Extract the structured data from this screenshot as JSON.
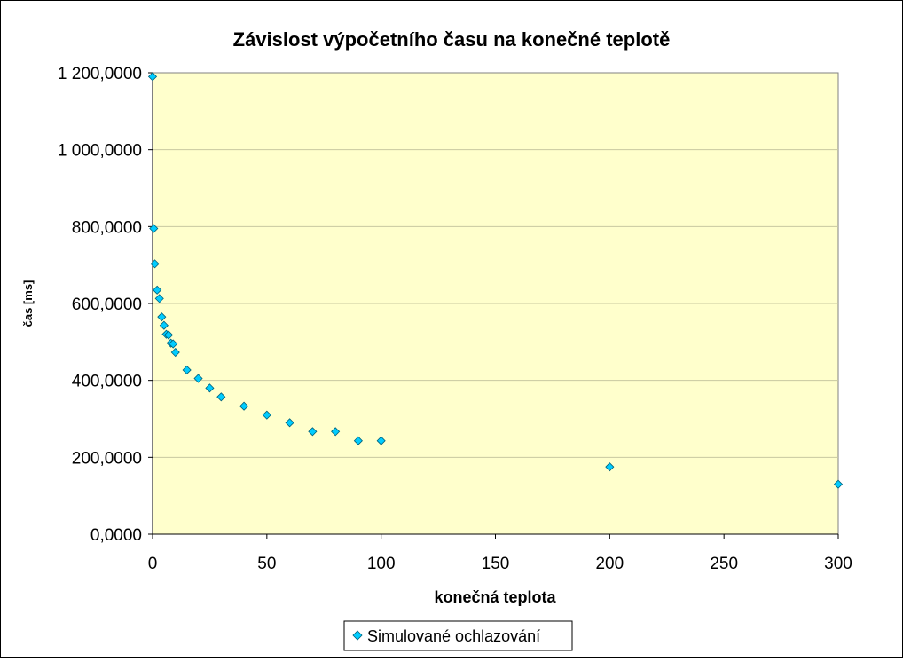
{
  "chart_data": {
    "type": "scatter",
    "title": "Závislost výpočetního času na konečné teplotě",
    "xlabel": "konečná teplota",
    "ylabel": "čas [ms]",
    "xlim": [
      0,
      300
    ],
    "ylim": [
      0,
      1200
    ],
    "x_ticks": [
      0,
      50,
      100,
      150,
      200,
      250,
      300
    ],
    "x_tick_labels": [
      "0",
      "50",
      "100",
      "150",
      "200",
      "250",
      "300"
    ],
    "y_ticks": [
      0,
      200,
      400,
      600,
      800,
      1000,
      1200
    ],
    "y_tick_labels": [
      "0,0000",
      "200,0000",
      "400,0000",
      "600,0000",
      "800,0000",
      "1 000,0000",
      "1 200,0000"
    ],
    "grid": {
      "horizontal": true,
      "vertical": false
    },
    "legend_position": "bottom",
    "plot_background": "#ffffcc",
    "marker_color": "#00ccff",
    "marker": "diamond",
    "series": [
      {
        "name": "Simulované ochlazování",
        "points": [
          {
            "x": 0,
            "y": 1190
          },
          {
            "x": 0.5,
            "y": 795
          },
          {
            "x": 1,
            "y": 703
          },
          {
            "x": 2,
            "y": 635
          },
          {
            "x": 3,
            "y": 613
          },
          {
            "x": 4,
            "y": 565
          },
          {
            "x": 5,
            "y": 543
          },
          {
            "x": 6,
            "y": 520
          },
          {
            "x": 7,
            "y": 518
          },
          {
            "x": 8,
            "y": 497
          },
          {
            "x": 9,
            "y": 495
          },
          {
            "x": 10,
            "y": 473
          },
          {
            "x": 15,
            "y": 427
          },
          {
            "x": 20,
            "y": 405
          },
          {
            "x": 25,
            "y": 380
          },
          {
            "x": 30,
            "y": 357
          },
          {
            "x": 40,
            "y": 333
          },
          {
            "x": 50,
            "y": 310
          },
          {
            "x": 60,
            "y": 290
          },
          {
            "x": 70,
            "y": 267
          },
          {
            "x": 80,
            "y": 267
          },
          {
            "x": 90,
            "y": 243
          },
          {
            "x": 100,
            "y": 243
          },
          {
            "x": 200,
            "y": 175
          },
          {
            "x": 300,
            "y": 130
          }
        ]
      }
    ]
  }
}
